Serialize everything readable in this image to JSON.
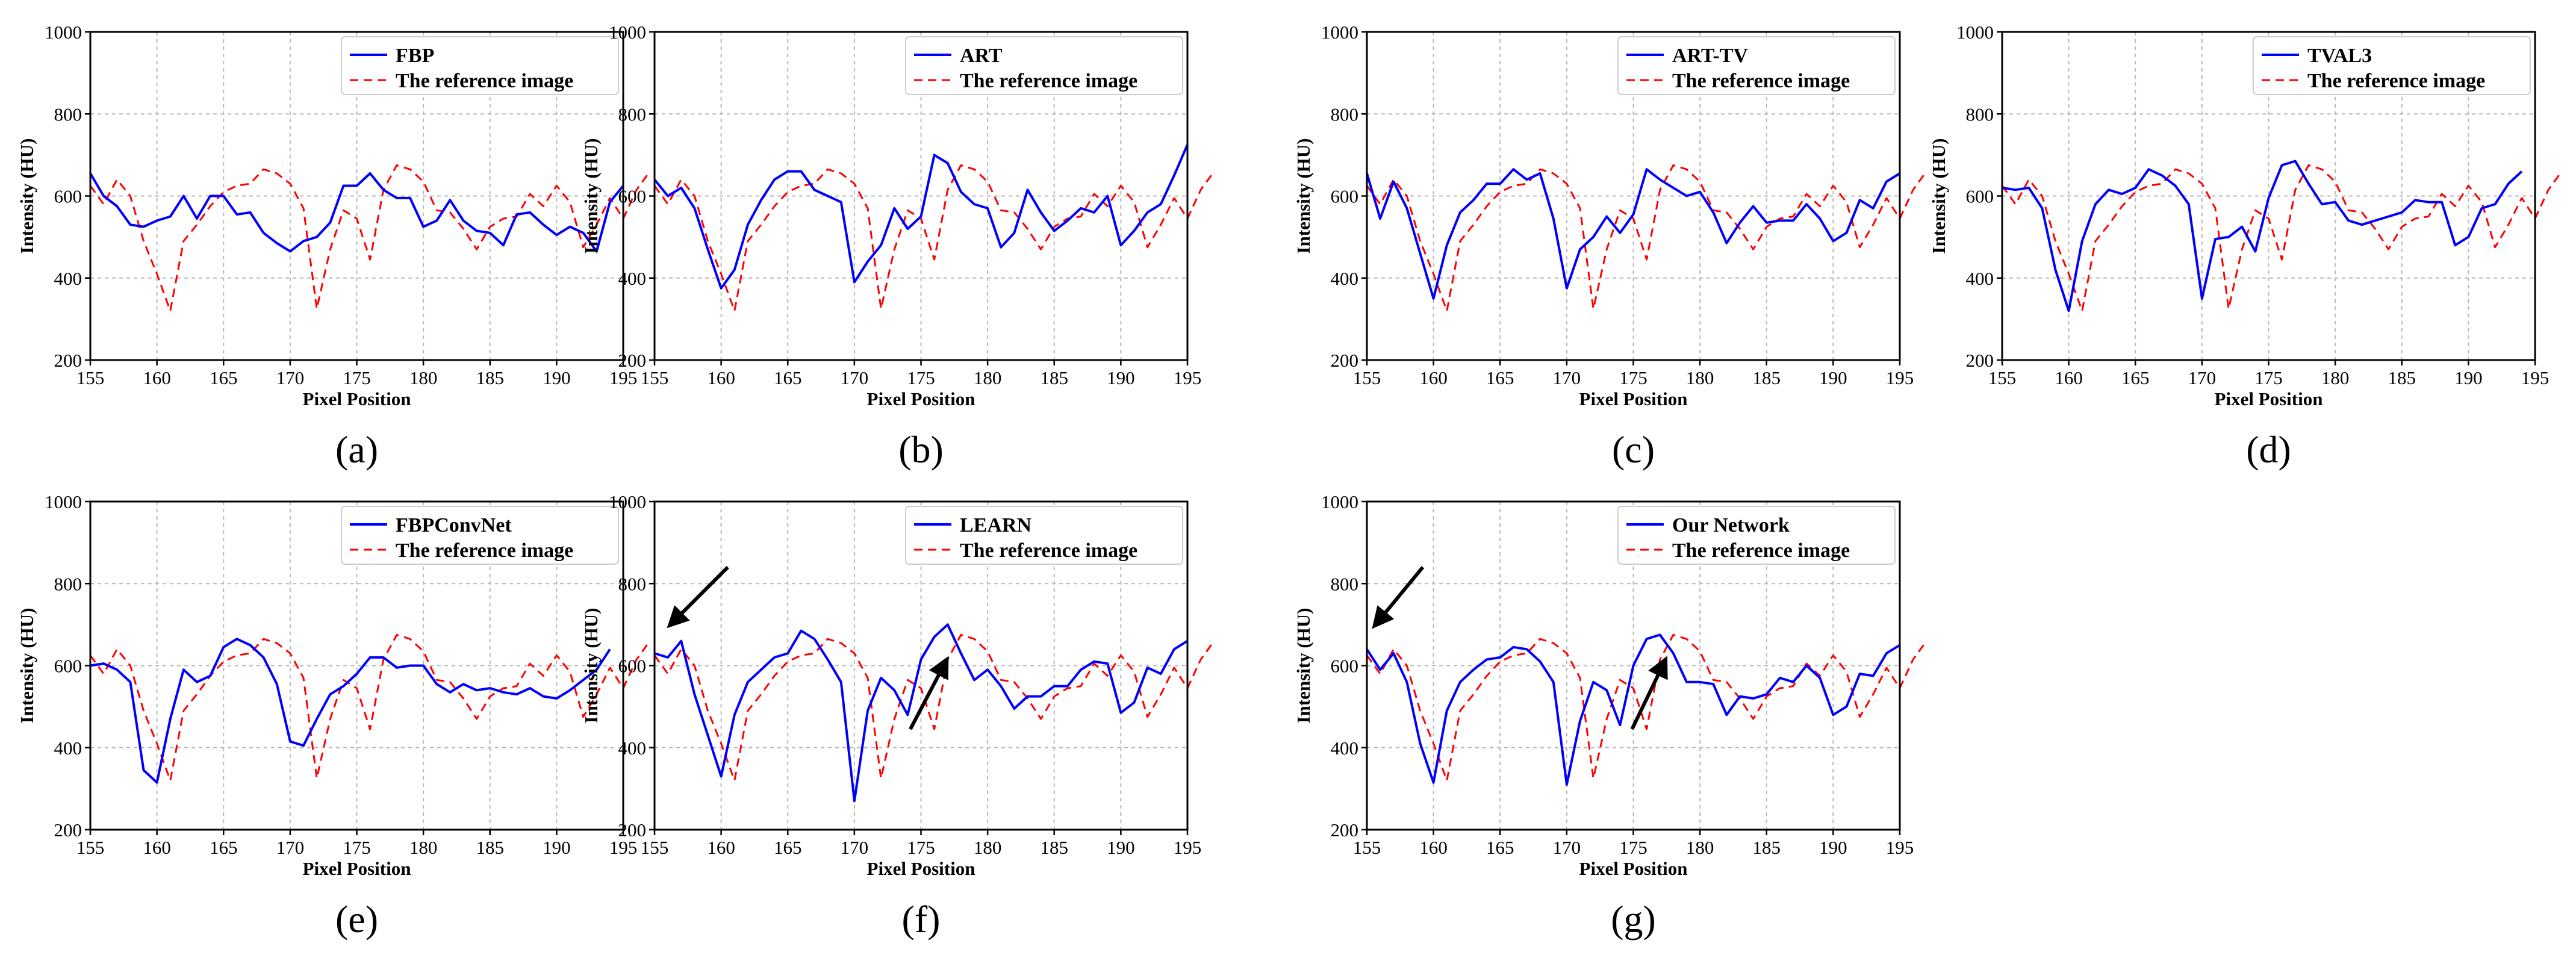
{
  "figure": {
    "colors": {
      "network": "#0000ff",
      "reference": "#ff0000",
      "axis": "#000000",
      "grid": "#b8b8b8"
    }
  },
  "chart_data": [
    {
      "type": "line",
      "caption": "(a)",
      "xlabel": "Pixel Position",
      "ylabel": "Intensity (HU)",
      "xlim": [
        155,
        195
      ],
      "ylim": [
        200,
        1000
      ],
      "xticks": [
        "155",
        "160",
        "165",
        "170",
        "175",
        "180",
        "185",
        "190",
        "195"
      ],
      "yticks": [
        "200",
        "400",
        "600",
        "800",
        "1000"
      ],
      "legend_position": "top-right",
      "series": [
        {
          "name": "FBP",
          "style": "solid",
          "color": "#0000ff",
          "values": [
            655,
            600,
            575,
            530,
            525,
            540,
            550,
            600,
            545,
            600,
            600,
            555,
            560,
            510,
            485,
            465,
            490,
            500,
            535,
            625,
            625,
            655,
            615,
            595,
            595,
            525,
            540,
            590,
            540,
            515,
            510,
            480,
            555,
            560,
            530,
            505,
            525,
            510,
            465,
            585,
            625
          ]
        },
        {
          "name": "The reference image",
          "style": "dashed",
          "color": "#ff0000",
          "values": [
            625,
            580,
            640,
            600,
            490,
            410,
            320,
            490,
            530,
            575,
            610,
            625,
            630,
            665,
            655,
            630,
            570,
            325,
            470,
            565,
            545,
            445,
            615,
            675,
            665,
            635,
            565,
            560,
            520,
            470,
            525,
            545,
            550,
            605,
            575,
            625,
            585,
            475,
            530,
            595,
            545,
            615,
            660
          ]
        }
      ]
    },
    {
      "type": "line",
      "caption": "(b)",
      "xlabel": "Pixel Position",
      "ylabel": "Intensity (HU)",
      "xlim": [
        155,
        195
      ],
      "ylim": [
        200,
        1000
      ],
      "xticks": [
        "155",
        "160",
        "165",
        "170",
        "175",
        "180",
        "185",
        "190",
        "195"
      ],
      "yticks": [
        "200",
        "400",
        "600",
        "800",
        "1000"
      ],
      "legend_position": "top-right",
      "series": [
        {
          "name": "ART",
          "style": "solid",
          "color": "#0000ff",
          "values": [
            640,
            600,
            620,
            570,
            470,
            375,
            420,
            530,
            590,
            640,
            660,
            660,
            615,
            600,
            585,
            390,
            440,
            480,
            570,
            520,
            550,
            700,
            680,
            610,
            580,
            570,
            475,
            510,
            615,
            560,
            515,
            540,
            570,
            560,
            600,
            480,
            515,
            560,
            580,
            650,
            725
          ]
        },
        {
          "name": "The reference image",
          "style": "dashed",
          "color": "#ff0000",
          "values": [
            625,
            580,
            640,
            600,
            490,
            410,
            320,
            490,
            530,
            575,
            610,
            625,
            630,
            665,
            655,
            630,
            570,
            325,
            470,
            565,
            545,
            445,
            615,
            675,
            665,
            635,
            565,
            560,
            520,
            470,
            525,
            545,
            550,
            605,
            575,
            625,
            585,
            475,
            530,
            595,
            545,
            615,
            660
          ]
        }
      ]
    },
    {
      "type": "line",
      "caption": "(c)",
      "xlabel": "Pixel Position",
      "ylabel": "Intensity (HU)",
      "xlim": [
        155,
        195
      ],
      "ylim": [
        200,
        1000
      ],
      "xticks": [
        "155",
        "160",
        "165",
        "170",
        "175",
        "180",
        "185",
        "190",
        "195"
      ],
      "yticks": [
        "200",
        "400",
        "600",
        "800",
        "1000"
      ],
      "legend_position": "top-right",
      "series": [
        {
          "name": "ART-TV",
          "style": "solid",
          "color": "#0000ff",
          "values": [
            655,
            545,
            635,
            570,
            460,
            350,
            480,
            560,
            590,
            630,
            630,
            665,
            640,
            655,
            545,
            375,
            470,
            500,
            550,
            510,
            555,
            665,
            640,
            620,
            600,
            610,
            560,
            485,
            535,
            575,
            535,
            540,
            540,
            580,
            545,
            490,
            510,
            590,
            570,
            635,
            655
          ]
        },
        {
          "name": "The reference image",
          "style": "dashed",
          "color": "#ff0000",
          "values": [
            625,
            580,
            640,
            600,
            490,
            410,
            320,
            490,
            530,
            575,
            610,
            625,
            630,
            665,
            655,
            630,
            570,
            325,
            470,
            565,
            545,
            445,
            615,
            675,
            665,
            635,
            565,
            560,
            520,
            470,
            525,
            545,
            550,
            605,
            575,
            625,
            585,
            475,
            530,
            595,
            545,
            615,
            660
          ]
        }
      ]
    },
    {
      "type": "line",
      "caption": "(d)",
      "xlabel": "Pixel Position",
      "ylabel": "Intensity (HU)",
      "xlim": [
        155,
        195
      ],
      "ylim": [
        200,
        1000
      ],
      "xticks": [
        "155",
        "160",
        "165",
        "170",
        "175",
        "180",
        "185",
        "190",
        "195"
      ],
      "yticks": [
        "200",
        "400",
        "600",
        "800",
        "1000"
      ],
      "legend_position": "top-right",
      "series": [
        {
          "name": "TVAL3",
          "style": "solid",
          "color": "#0000ff",
          "values": [
            620,
            615,
            620,
            570,
            420,
            320,
            490,
            580,
            615,
            605,
            620,
            665,
            650,
            625,
            580,
            350,
            495,
            500,
            525,
            465,
            595,
            675,
            685,
            630,
            580,
            585,
            540,
            530,
            540,
            550,
            560,
            590,
            585,
            585,
            480,
            500,
            570,
            580,
            630,
            660
          ]
        },
        {
          "name": "The reference image",
          "style": "dashed",
          "color": "#ff0000",
          "values": [
            625,
            580,
            640,
            600,
            490,
            410,
            320,
            490,
            530,
            575,
            610,
            625,
            630,
            665,
            655,
            630,
            570,
            325,
            470,
            565,
            545,
            445,
            615,
            675,
            665,
            635,
            565,
            560,
            520,
            470,
            525,
            545,
            550,
            605,
            575,
            625,
            585,
            475,
            530,
            595,
            545,
            615,
            660
          ]
        }
      ]
    },
    {
      "type": "line",
      "caption": "(e)",
      "xlabel": "Pixel Position",
      "ylabel": "Intensity (HU)",
      "xlim": [
        155,
        195
      ],
      "ylim": [
        200,
        1000
      ],
      "xticks": [
        "155",
        "160",
        "165",
        "170",
        "175",
        "180",
        "185",
        "190",
        "195"
      ],
      "yticks": [
        "200",
        "400",
        "600",
        "800",
        "1000"
      ],
      "legend_position": "top-right",
      "series": [
        {
          "name": "FBPConvNet",
          "style": "solid",
          "color": "#0000ff",
          "values": [
            600,
            605,
            590,
            560,
            345,
            315,
            470,
            590,
            560,
            575,
            645,
            665,
            650,
            620,
            555,
            415,
            405,
            470,
            530,
            550,
            580,
            620,
            620,
            595,
            600,
            600,
            555,
            535,
            555,
            540,
            545,
            535,
            530,
            545,
            525,
            520,
            540,
            565,
            590,
            640
          ]
        },
        {
          "name": "The reference image",
          "style": "dashed",
          "color": "#ff0000",
          "values": [
            625,
            580,
            640,
            600,
            490,
            410,
            320,
            490,
            530,
            575,
            610,
            625,
            630,
            665,
            655,
            630,
            570,
            325,
            470,
            565,
            545,
            445,
            615,
            675,
            665,
            635,
            565,
            560,
            520,
            470,
            525,
            545,
            550,
            605,
            575,
            625,
            585,
            475,
            530,
            595,
            545,
            615,
            660
          ]
        }
      ]
    },
    {
      "type": "line",
      "caption": "(f)",
      "xlabel": "Pixel Position",
      "ylabel": "Intensity (HU)",
      "xlim": [
        155,
        195
      ],
      "ylim": [
        200,
        1000
      ],
      "xticks": [
        "155",
        "160",
        "165",
        "170",
        "175",
        "180",
        "185",
        "190",
        "195"
      ],
      "yticks": [
        "200",
        "400",
        "600",
        "800",
        "1000"
      ],
      "legend_position": "top-right",
      "series": [
        {
          "name": "LEARN",
          "style": "solid",
          "color": "#0000ff",
          "values": [
            630,
            620,
            660,
            530,
            430,
            330,
            480,
            560,
            590,
            620,
            630,
            685,
            665,
            615,
            560,
            270,
            490,
            570,
            540,
            480,
            615,
            670,
            700,
            630,
            565,
            590,
            550,
            495,
            525,
            525,
            550,
            550,
            590,
            610,
            605,
            485,
            510,
            595,
            580,
            640,
            660
          ]
        },
        {
          "name": "The reference image",
          "style": "dashed",
          "color": "#ff0000",
          "values": [
            625,
            580,
            640,
            600,
            490,
            410,
            320,
            490,
            530,
            575,
            610,
            625,
            630,
            665,
            655,
            630,
            570,
            325,
            470,
            565,
            545,
            445,
            615,
            675,
            665,
            635,
            565,
            560,
            520,
            470,
            525,
            545,
            550,
            605,
            575,
            625,
            585,
            475,
            530,
            595,
            545,
            615,
            660
          ]
        }
      ]
    },
    {
      "type": "line",
      "caption": "(g)",
      "xlabel": "Pixel Position",
      "ylabel": "Intensity (HU)",
      "xlim": [
        155,
        195
      ],
      "ylim": [
        200,
        1000
      ],
      "xticks": [
        "155",
        "160",
        "165",
        "170",
        "175",
        "180",
        "185",
        "190",
        "195"
      ],
      "yticks": [
        "200",
        "400",
        "600",
        "800",
        "1000"
      ],
      "legend_position": "top-right",
      "series": [
        {
          "name": "Our Network",
          "style": "solid",
          "color": "#0000ff",
          "values": [
            640,
            590,
            630,
            560,
            410,
            315,
            490,
            560,
            590,
            615,
            620,
            645,
            640,
            610,
            560,
            310,
            465,
            560,
            540,
            455,
            600,
            665,
            675,
            630,
            560,
            560,
            555,
            480,
            525,
            520,
            530,
            570,
            560,
            600,
            570,
            480,
            500,
            580,
            575,
            630,
            650
          ]
        },
        {
          "name": "The reference image",
          "style": "dashed",
          "color": "#ff0000",
          "values": [
            625,
            580,
            640,
            600,
            490,
            410,
            320,
            490,
            530,
            575,
            610,
            625,
            630,
            665,
            655,
            630,
            570,
            325,
            470,
            565,
            545,
            445,
            615,
            675,
            665,
            635,
            565,
            560,
            520,
            470,
            525,
            545,
            550,
            605,
            575,
            625,
            585,
            475,
            530,
            595,
            545,
            615,
            660
          ]
        }
      ]
    }
  ],
  "annotations": [
    {
      "panel": 5,
      "kind": "arrow",
      "from": [
        160.5,
        840
      ],
      "to": [
        156.5,
        710
      ]
    },
    {
      "panel": 5,
      "kind": "arrow",
      "from": [
        174.2,
        445
      ],
      "to": [
        176.7,
        600
      ]
    },
    {
      "panel": 6,
      "kind": "arrow",
      "from": [
        159.2,
        840
      ],
      "to": [
        155.9,
        710
      ]
    },
    {
      "panel": 6,
      "kind": "arrow",
      "from": [
        174.9,
        445
      ],
      "to": [
        177.2,
        600
      ]
    }
  ]
}
